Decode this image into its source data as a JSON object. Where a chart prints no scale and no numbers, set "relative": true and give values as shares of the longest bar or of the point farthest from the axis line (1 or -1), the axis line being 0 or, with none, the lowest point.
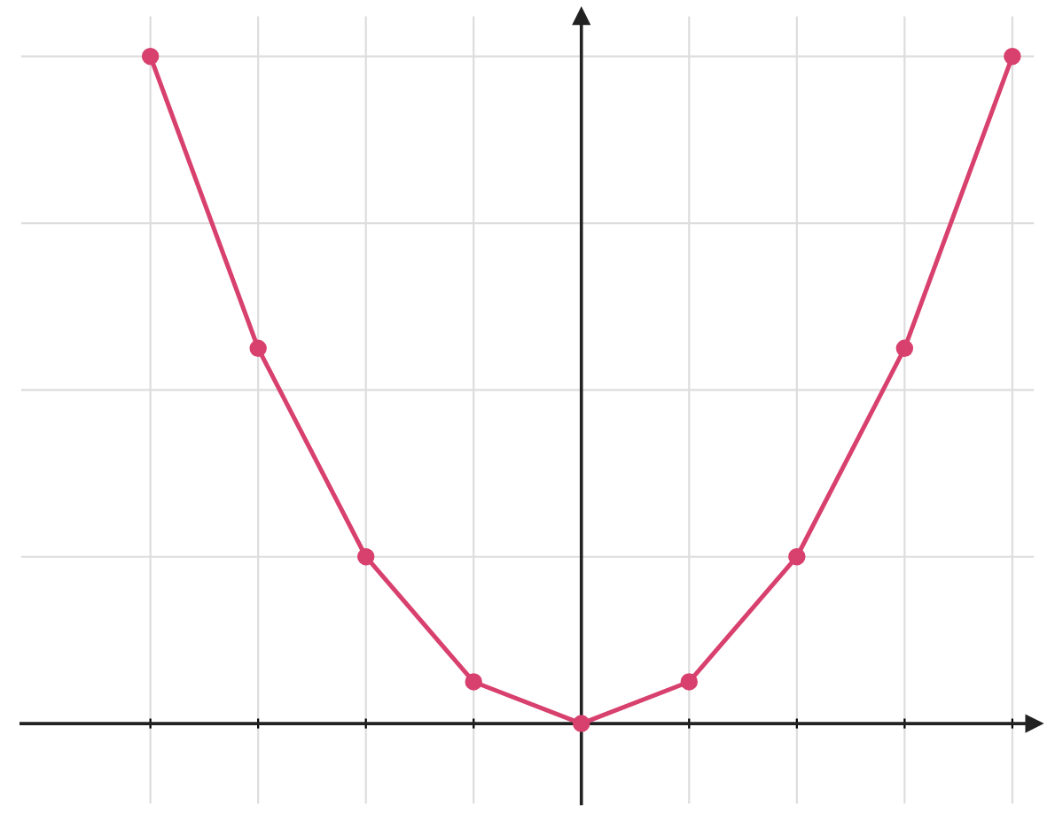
{
  "chart_data": {
    "type": "line",
    "relative": true,
    "categories": [
      null,
      null,
      null,
      null,
      null,
      null,
      null,
      null,
      null
    ],
    "series": [
      {
        "color": "#d8406e",
        "marker": "circle",
        "values": [
          1,
          0.5625,
          0.25,
          0.0625,
          0,
          0.0625,
          0.25,
          0.5625,
          1
        ]
      }
    ],
    "grid": true,
    "tick_labels": false,
    "legend": false
  }
}
